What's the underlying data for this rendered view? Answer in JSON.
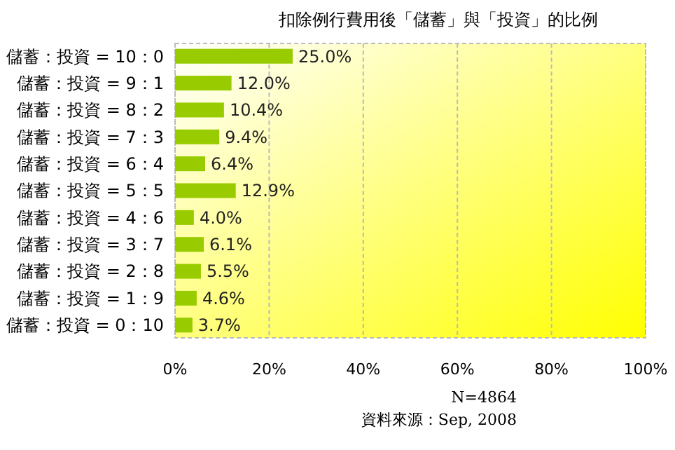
{
  "chart_data": {
    "type": "bar",
    "orientation": "horizontal",
    "title": "扣除例行費用後「儲蓄」與「投資」的比例",
    "categories": [
      "儲蓄：投資 = 10：0",
      "儲蓄：投資 = 9：1",
      "儲蓄：投資 = 8：2",
      "儲蓄：投資 = 7：3",
      "儲蓄：投資 = 6：4",
      "儲蓄：投資 = 5：5",
      "儲蓄：投資 = 4：6",
      "儲蓄：投資 = 3：7",
      "儲蓄：投資 = 2：8",
      "儲蓄：投資 = 1：9",
      "儲蓄：投資 = 0：10"
    ],
    "values": [
      25.0,
      12.0,
      10.4,
      9.4,
      6.4,
      12.9,
      4.0,
      6.1,
      5.5,
      4.6,
      3.7
    ],
    "value_labels": [
      "25.0%",
      "12.0%",
      "10.4%",
      "9.4%",
      "6.4%",
      "12.9%",
      "4.0%",
      "6.1%",
      "5.5%",
      "4.6%",
      "3.7%"
    ],
    "color": "#99cc00",
    "xlim": [
      0,
      100
    ],
    "xticks": [
      {
        "value": 0,
        "label": "0%"
      },
      {
        "value": 20,
        "label": "20%"
      },
      {
        "value": 40,
        "label": "40%"
      },
      {
        "value": 60,
        "label": "60%"
      },
      {
        "value": 80,
        "label": "80%"
      },
      {
        "value": 100,
        "label": "100%"
      }
    ],
    "grid": "x",
    "annotations": [
      "N=4864",
      "資料來源：Sep, 2008"
    ]
  }
}
